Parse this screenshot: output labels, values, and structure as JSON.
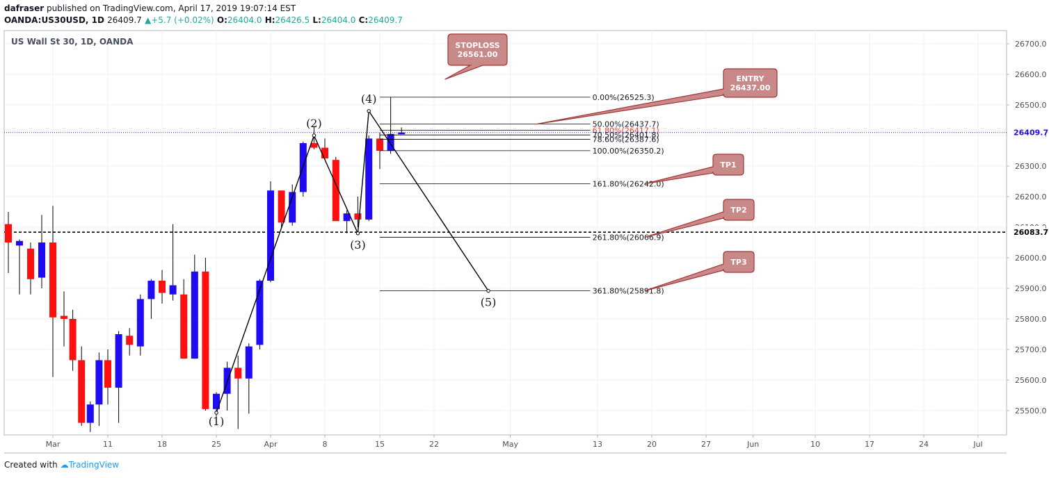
{
  "header": {
    "author": "dafraser",
    "published_text": "published on TradingView.com, April 17, 2019 19:07:14 EST",
    "symbol": "OANDA:US30USD, 1D",
    "last": "26409.7",
    "change": "+5.7 (+0.02%)",
    "o_label": "O:",
    "o_value": "26404.0",
    "h_label": "H:",
    "h_value": "26426.5",
    "l_label": "L:",
    "l_value": "26404.0",
    "c_label": "C:",
    "c_value": "26409.7"
  },
  "footer": {
    "created_with": "Created with",
    "brand": "TradingView"
  },
  "colors": {
    "up": "#1e0af5",
    "down": "#ff1010",
    "callout_fill": "#c98989",
    "callout_stroke": "#a33535",
    "callout_text": "#ffffff",
    "price_line": "#2929e0"
  },
  "chart_data": {
    "type": "candlestick",
    "title": "US Wall St 30, 1D, OANDA",
    "ylim": [
      25430,
      26760
    ],
    "y_ticks": [
      "25500.0",
      "25600.0",
      "25700.0",
      "25800.0",
      "25900.0",
      "26000.0",
      "26100.0",
      "26200.0",
      "26300.0",
      "26400.0",
      "26500.0",
      "26600.0",
      "26700.0"
    ],
    "x_tick_labels": [
      {
        "date": "2019-03-01",
        "label": "Mar"
      },
      {
        "date": "2019-03-11",
        "label": "11"
      },
      {
        "date": "2019-03-18",
        "label": "18"
      },
      {
        "date": "2019-03-25",
        "label": "25"
      },
      {
        "date": "2019-04-01",
        "label": "Apr"
      },
      {
        "date": "2019-04-08",
        "label": "8"
      },
      {
        "date": "2019-04-15",
        "label": "15"
      },
      {
        "date": "2019-04-22",
        "label": "22"
      },
      {
        "date": "2019-05-01",
        "label": "May"
      },
      {
        "date": "2019-05-13",
        "label": "13"
      },
      {
        "date": "2019-05-20",
        "label": "20"
      },
      {
        "date": "2019-05-27",
        "label": "27"
      },
      {
        "date": "2019-06-01",
        "label": "Jun"
      },
      {
        "date": "2019-06-10",
        "label": "10"
      },
      {
        "date": "2019-06-17",
        "label": "17"
      },
      {
        "date": "2019-06-24",
        "label": "24"
      },
      {
        "date": "2019-07-01",
        "label": "Jul"
      }
    ],
    "candles": [
      {
        "date": "2019-02-25",
        "o": 26110,
        "h": 26150,
        "l": 25950,
        "c": 26050
      },
      {
        "date": "2019-02-26",
        "o": 26040,
        "h": 26060,
        "l": 25880,
        "c": 26055
      },
      {
        "date": "2019-02-27",
        "o": 26030,
        "h": 26050,
        "l": 25880,
        "c": 25930
      },
      {
        "date": "2019-02-28",
        "o": 25935,
        "h": 26140,
        "l": 25900,
        "c": 26050
      },
      {
        "date": "2019-03-01",
        "o": 26050,
        "h": 26170,
        "l": 25610,
        "c": 25805
      },
      {
        "date": "2019-03-04",
        "o": 25810,
        "h": 25890,
        "l": 25710,
        "c": 25800
      },
      {
        "date": "2019-03-05",
        "o": 25800,
        "h": 25830,
        "l": 25630,
        "c": 25665
      },
      {
        "date": "2019-03-06",
        "o": 25665,
        "h": 25710,
        "l": 25450,
        "c": 25460
      },
      {
        "date": "2019-03-07",
        "o": 25460,
        "h": 25530,
        "l": 25430,
        "c": 25520
      },
      {
        "date": "2019-03-08",
        "o": 25520,
        "h": 25690,
        "l": 25450,
        "c": 25665
      },
      {
        "date": "2019-03-11",
        "o": 25665,
        "h": 25700,
        "l": 25520,
        "c": 25575
      },
      {
        "date": "2019-03-12",
        "o": 25575,
        "h": 25760,
        "l": 25460,
        "c": 25750
      },
      {
        "date": "2019-03-13",
        "o": 25745,
        "h": 25770,
        "l": 25680,
        "c": 25715
      },
      {
        "date": "2019-03-14",
        "o": 25710,
        "h": 25880,
        "l": 25680,
        "c": 25865
      },
      {
        "date": "2019-03-15",
        "o": 25865,
        "h": 25930,
        "l": 25800,
        "c": 25925
      },
      {
        "date": "2019-03-18",
        "o": 25925,
        "h": 25960,
        "l": 25850,
        "c": 25885
      },
      {
        "date": "2019-03-19",
        "o": 25880,
        "h": 26110,
        "l": 25860,
        "c": 25910
      },
      {
        "date": "2019-03-20",
        "o": 25880,
        "h": 25930,
        "l": 25670,
        "c": 25670
      },
      {
        "date": "2019-03-21",
        "o": 25670,
        "h": 26010,
        "l": 25670,
        "c": 25955
      },
      {
        "date": "2019-03-22",
        "o": 25955,
        "h": 26000,
        "l": 25500,
        "c": 25505
      },
      {
        "date": "2019-03-25",
        "o": 25505,
        "h": 25560,
        "l": 25480,
        "c": 25555
      },
      {
        "date": "2019-03-26",
        "o": 25555,
        "h": 25660,
        "l": 25500,
        "c": 25640
      },
      {
        "date": "2019-03-27",
        "o": 25640,
        "h": 25680,
        "l": 25440,
        "c": 25605
      },
      {
        "date": "2019-03-28",
        "o": 25605,
        "h": 25720,
        "l": 25490,
        "c": 25710
      },
      {
        "date": "2019-03-29",
        "o": 25715,
        "h": 25930,
        "l": 25700,
        "c": 25925
      },
      {
        "date": "2019-04-01",
        "o": 25925,
        "h": 26250,
        "l": 25920,
        "c": 26220
      },
      {
        "date": "2019-04-02",
        "o": 26220,
        "h": 26220,
        "l": 26100,
        "c": 26115
      },
      {
        "date": "2019-04-03",
        "o": 26115,
        "h": 26240,
        "l": 26105,
        "c": 26215
      },
      {
        "date": "2019-04-04",
        "o": 26215,
        "h": 26380,
        "l": 26200,
        "c": 26375
      },
      {
        "date": "2019-04-05",
        "o": 26375,
        "h": 26430,
        "l": 26355,
        "c": 26360
      },
      {
        "date": "2019-04-08",
        "o": 26360,
        "h": 26390,
        "l": 26320,
        "c": 26325
      },
      {
        "date": "2019-04-09",
        "o": 26320,
        "h": 26330,
        "l": 26120,
        "c": 26120
      },
      {
        "date": "2019-04-10",
        "o": 26120,
        "h": 26155,
        "l": 26080,
        "c": 26145
      },
      {
        "date": "2019-04-11",
        "o": 26145,
        "h": 26200,
        "l": 26100,
        "c": 26125
      },
      {
        "date": "2019-04-12",
        "o": 26125,
        "h": 26400,
        "l": 26120,
        "c": 26390
      },
      {
        "date": "2019-04-15",
        "o": 26390,
        "h": 26410,
        "l": 26290,
        "c": 26350
      },
      {
        "date": "2019-04-16",
        "o": 26350,
        "h": 26525,
        "l": 26340,
        "c": 26405
      },
      {
        "date": "2019-04-17",
        "o": 26404,
        "h": 26426.5,
        "l": 26404,
        "c": 26409.7
      }
    ],
    "current_price": "26409.7",
    "hline_price": "26083.7",
    "fibonacci": {
      "levels": [
        {
          "label": "0.00%(26525.3)",
          "price": 26525.3,
          "start": "2019-04-15"
        },
        {
          "label": "50.00%(26437.7)",
          "price": 26437.7,
          "start": "2019-04-15"
        },
        {
          "label": "61.80%(26417.1)",
          "price": 26417.1,
          "start": "2019-04-15",
          "color": "#e04040"
        },
        {
          "label": "70.50%(26401.8)",
          "price": 26401.8,
          "start": "2019-04-15"
        },
        {
          "label": "78.60%(26387.6)",
          "price": 26387.6,
          "start": "2019-04-15"
        },
        {
          "label": "100.00%(26350.2)",
          "price": 26350.2,
          "start": "2019-04-15"
        },
        {
          "label": "161.80%(26242.0)",
          "price": 26242.0,
          "start": "2019-04-15"
        },
        {
          "label": "261.80%(26066.9)",
          "price": 26066.9,
          "start": "2019-04-15"
        },
        {
          "label": "361.80%(25891.8)",
          "price": 25891.8,
          "start": "2019-04-15"
        }
      ],
      "end": "2019-05-11"
    },
    "waves": [
      {
        "label": "(1)",
        "date": "2019-03-25",
        "price": 25493
      },
      {
        "label": "(2)",
        "date": "2019-04-05",
        "price": 26400
      },
      {
        "label": "(3)",
        "date": "2019-04-11",
        "price": 26080
      },
      {
        "label": "(4)",
        "date": "2019-04-12",
        "price": 26480
      },
      {
        "label": "(5)",
        "date": "2019-04-29",
        "price": 25891.8
      }
    ],
    "callouts": [
      {
        "id": "stoploss",
        "lines": [
          "STOPLOSS",
          "26561.00"
        ],
        "price": 26561.0
      },
      {
        "id": "entry",
        "lines": [
          "ENTRY",
          "26437.00"
        ],
        "price": 26437.0
      },
      {
        "id": "tp1",
        "lines": [
          "TP1"
        ],
        "price": 26242.0
      },
      {
        "id": "tp2",
        "lines": [
          "TP2"
        ],
        "price": 26066.9
      },
      {
        "id": "tp3",
        "lines": [
          "TP3"
        ],
        "price": 25891.8
      }
    ]
  }
}
